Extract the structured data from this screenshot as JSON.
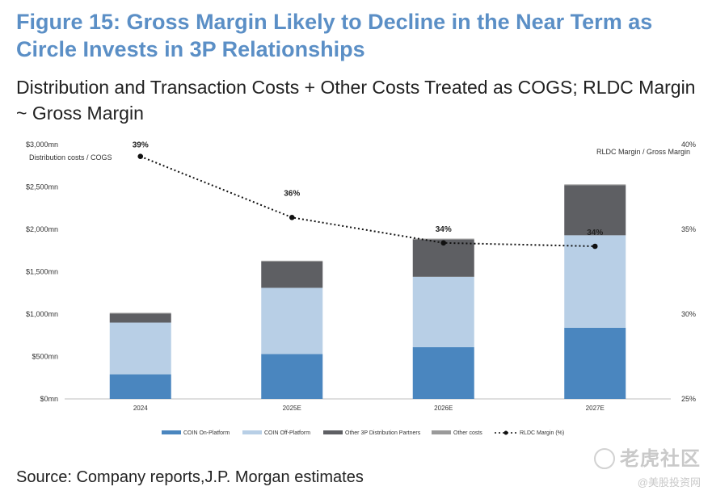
{
  "figure": {
    "title": "Figure 15: Gross Margin Likely to Decline in the Near Term as Circle Invests in 3P Relationships",
    "subtitle": "Distribution and Transaction Costs + Other Costs Treated as COGS; RLDC Margin ~ Gross Margin",
    "source": "Source: Company reports,J.P. Morgan estimates"
  },
  "watermark": {
    "line1": "老虎社区",
    "line2": "@美股投资网"
  },
  "chart_data": {
    "type": "bar",
    "stacked": true,
    "categories": [
      "2024",
      "2025E",
      "2026E",
      "2027E"
    ],
    "y_left": {
      "label": "Distribution costs / COGS",
      "ticks": [
        "$0mn",
        "$500mn",
        "$1,000mn",
        "$1,500mn",
        "$2,000mn",
        "$2,500mn",
        "$3,000mn"
      ],
      "range": [
        0,
        3000
      ]
    },
    "y_right": {
      "label": "RLDC Margin / Gross Margin",
      "ticks": [
        "25%",
        "30%",
        "35%",
        "40%"
      ],
      "range": [
        25,
        40
      ]
    },
    "series": [
      {
        "name": "COIN On-Platform",
        "color": "#4a86bf",
        "values": [
          290,
          530,
          610,
          840
        ]
      },
      {
        "name": "COIN Off-Platform",
        "color": "#b8cfe6",
        "values": [
          610,
          780,
          830,
          1090
        ]
      },
      {
        "name": "Other 3P Distribution Partners",
        "color": "#5e5f63",
        "values": [
          105,
          310,
          440,
          590
        ]
      },
      {
        "name": "Other costs",
        "color": "#9a9a9a",
        "values": [
          10,
          10,
          10,
          10
        ]
      }
    ],
    "line": {
      "name": "RLDC Margin (%)",
      "values": [
        39.3,
        35.7,
        34.2,
        34.0
      ],
      "labels": [
        "39%",
        "36%",
        "34%",
        "34%"
      ]
    },
    "legend_position": "bottom",
    "grid": false
  }
}
